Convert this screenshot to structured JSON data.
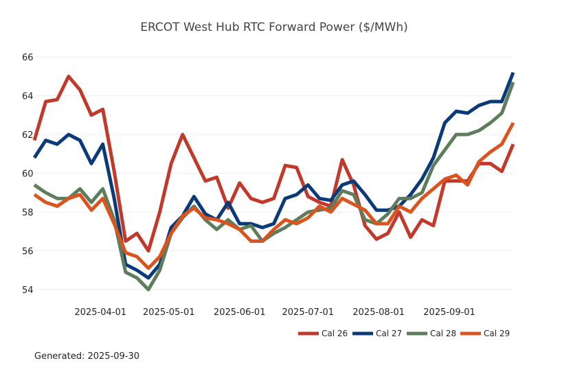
{
  "chart_data": {
    "type": "line",
    "title": "ERCOT West Hub RTC Forward Power ($/MWh)",
    "xlabel": "",
    "ylabel": "",
    "ylim": [
      53.3,
      66.4
    ],
    "xlim": [
      "2025-03-03",
      "2025-09-29"
    ],
    "grid": "horizontal",
    "legend_position": "bottom-right",
    "y_ticks": [
      54,
      56,
      58,
      60,
      62,
      64,
      66
    ],
    "x_ticks": [
      "2025-04-01",
      "2025-05-01",
      "2025-06-01",
      "2025-07-01",
      "2025-08-01",
      "2025-09-01"
    ],
    "x": [
      "2025-03-03",
      "2025-03-08",
      "2025-03-13",
      "2025-03-18",
      "2025-03-23",
      "2025-03-28",
      "2025-04-02",
      "2025-04-07",
      "2025-04-12",
      "2025-04-17",
      "2025-04-22",
      "2025-04-27",
      "2025-05-02",
      "2025-05-07",
      "2025-05-12",
      "2025-05-17",
      "2025-05-22",
      "2025-05-27",
      "2025-06-01",
      "2025-06-06",
      "2025-06-11",
      "2025-06-16",
      "2025-06-21",
      "2025-06-26",
      "2025-07-01",
      "2025-07-06",
      "2025-07-11",
      "2025-07-16",
      "2025-07-21",
      "2025-07-26",
      "2025-07-31",
      "2025-08-05",
      "2025-08-10",
      "2025-08-15",
      "2025-08-20",
      "2025-08-25",
      "2025-08-30",
      "2025-09-04",
      "2025-09-09",
      "2025-09-14",
      "2025-09-19",
      "2025-09-24",
      "2025-09-29"
    ],
    "series": [
      {
        "name": "Cal 26",
        "color": "#c0392b",
        "values": [
          61.7,
          63.7,
          63.8,
          65.0,
          64.3,
          63.0,
          63.3,
          60.1,
          56.5,
          56.9,
          56.0,
          58.0,
          60.5,
          62.0,
          60.8,
          59.6,
          59.8,
          58.2,
          59.5,
          58.7,
          58.5,
          58.7,
          60.4,
          60.3,
          58.8,
          58.5,
          58.3,
          60.7,
          59.4,
          57.3,
          56.6,
          56.9,
          58.0,
          56.7,
          57.6,
          57.3,
          59.6,
          59.6,
          59.6,
          60.5,
          60.5,
          60.1,
          61.5
        ]
      },
      {
        "name": "Cal 27",
        "color": "#0b3a78",
        "values": [
          60.8,
          61.7,
          61.5,
          62.0,
          61.7,
          60.5,
          61.5,
          58.7,
          55.3,
          55.0,
          54.6,
          55.3,
          57.2,
          57.8,
          58.8,
          57.9,
          57.6,
          58.5,
          57.4,
          57.4,
          57.2,
          57.4,
          58.7,
          58.9,
          59.4,
          58.7,
          58.6,
          59.4,
          59.6,
          58.9,
          58.1,
          58.1,
          58.3,
          58.9,
          59.7,
          60.8,
          62.6,
          63.2,
          63.1,
          63.5,
          63.7,
          63.7,
          65.2
        ]
      },
      {
        "name": "Cal 28",
        "color": "#5e7d5c",
        "values": [
          59.4,
          59.0,
          58.7,
          58.7,
          59.2,
          58.5,
          59.2,
          57.6,
          54.9,
          54.6,
          54.0,
          55.0,
          56.9,
          57.7,
          58.3,
          57.6,
          57.1,
          57.6,
          57.1,
          57.3,
          56.5,
          56.9,
          57.2,
          57.6,
          58.0,
          58.1,
          58.2,
          59.1,
          58.9,
          57.6,
          57.4,
          57.9,
          58.7,
          58.7,
          59.0,
          60.4,
          61.2,
          62.0,
          62.0,
          62.2,
          62.6,
          63.1,
          64.7
        ]
      },
      {
        "name": "Cal 29",
        "color": "#d9541e",
        "values": [
          58.9,
          58.5,
          58.3,
          58.7,
          58.9,
          58.1,
          58.7,
          57.4,
          55.9,
          55.7,
          55.1,
          55.7,
          56.9,
          57.8,
          58.2,
          57.7,
          57.6,
          57.4,
          57.1,
          56.5,
          56.5,
          57.1,
          57.6,
          57.4,
          57.7,
          58.3,
          58.0,
          58.7,
          58.4,
          58.1,
          57.4,
          57.4,
          58.3,
          58.0,
          58.7,
          59.2,
          59.7,
          59.9,
          59.4,
          60.6,
          61.1,
          61.5,
          62.6
        ]
      }
    ]
  },
  "footer": {
    "generated": "Generated: 2025-09-30"
  }
}
